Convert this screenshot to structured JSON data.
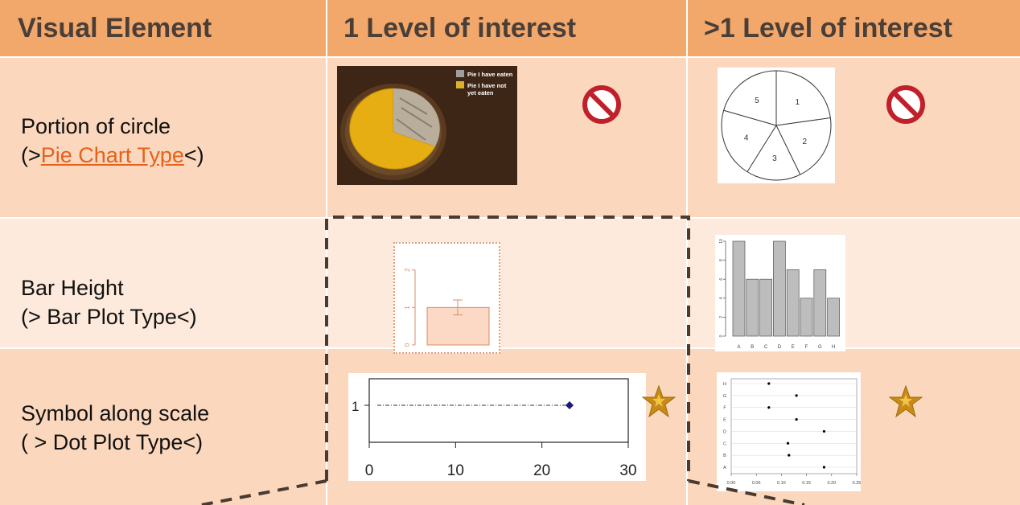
{
  "header": {
    "col1": "Visual Element",
    "col2": "1 Level of interest",
    "col3": ">1 Level of interest"
  },
  "rows": {
    "pie": {
      "line1": "Portion of circle",
      "open": "(>",
      "link": "Pie Chart Type",
      "close": "<)"
    },
    "bar": {
      "line1": "Bar Height",
      "line2": "(> Bar Plot Type<)"
    },
    "dot": {
      "line1": "Symbol along scale",
      "line2": "( > Dot Plot Type<)"
    }
  },
  "pie_photo_legend": [
    "Pie I have eaten",
    "Pie I have not yet eaten"
  ],
  "pie_chart": {
    "labels": [
      "1",
      "2",
      "3",
      "4",
      "5"
    ]
  },
  "bar_single": {
    "yticks": [
      "0",
      "1",
      "2"
    ],
    "value": 1.0,
    "err": [
      0.8,
      1.2
    ],
    "ylim": [
      0,
      2.4
    ]
  },
  "bar_multi": {
    "categories": [
      "A",
      "B",
      "C",
      "D",
      "E",
      "F",
      "G",
      "H"
    ],
    "values": [
      10,
      6,
      6,
      10,
      7,
      4,
      7,
      4
    ],
    "yticks": [
      "0",
      "2",
      "4",
      "6",
      "8",
      "10"
    ],
    "ylim": [
      0,
      10
    ]
  },
  "dot_single": {
    "category": "1",
    "value": 23.2,
    "xticks": [
      "0",
      "10",
      "20",
      "30"
    ],
    "xlim": [
      0,
      30
    ]
  },
  "dot_multi": {
    "categories": [
      "A",
      "B",
      "C",
      "D",
      "E",
      "F",
      "G",
      "H"
    ],
    "values": [
      0.185,
      0.115,
      0.113,
      0.185,
      0.13,
      0.075,
      0.13,
      0.075
    ],
    "xticks": [
      "0.00",
      "0.05",
      "0.10",
      "0.15",
      "0.20",
      "0.25"
    ],
    "xlim": [
      0,
      0.25
    ]
  },
  "colors": {
    "header": "#f2a76b",
    "row_dark": "#fbd8bd",
    "row_light": "#fdeadc",
    "link": "#e5611c",
    "star": "#c98a16",
    "no": "#c0202a"
  }
}
